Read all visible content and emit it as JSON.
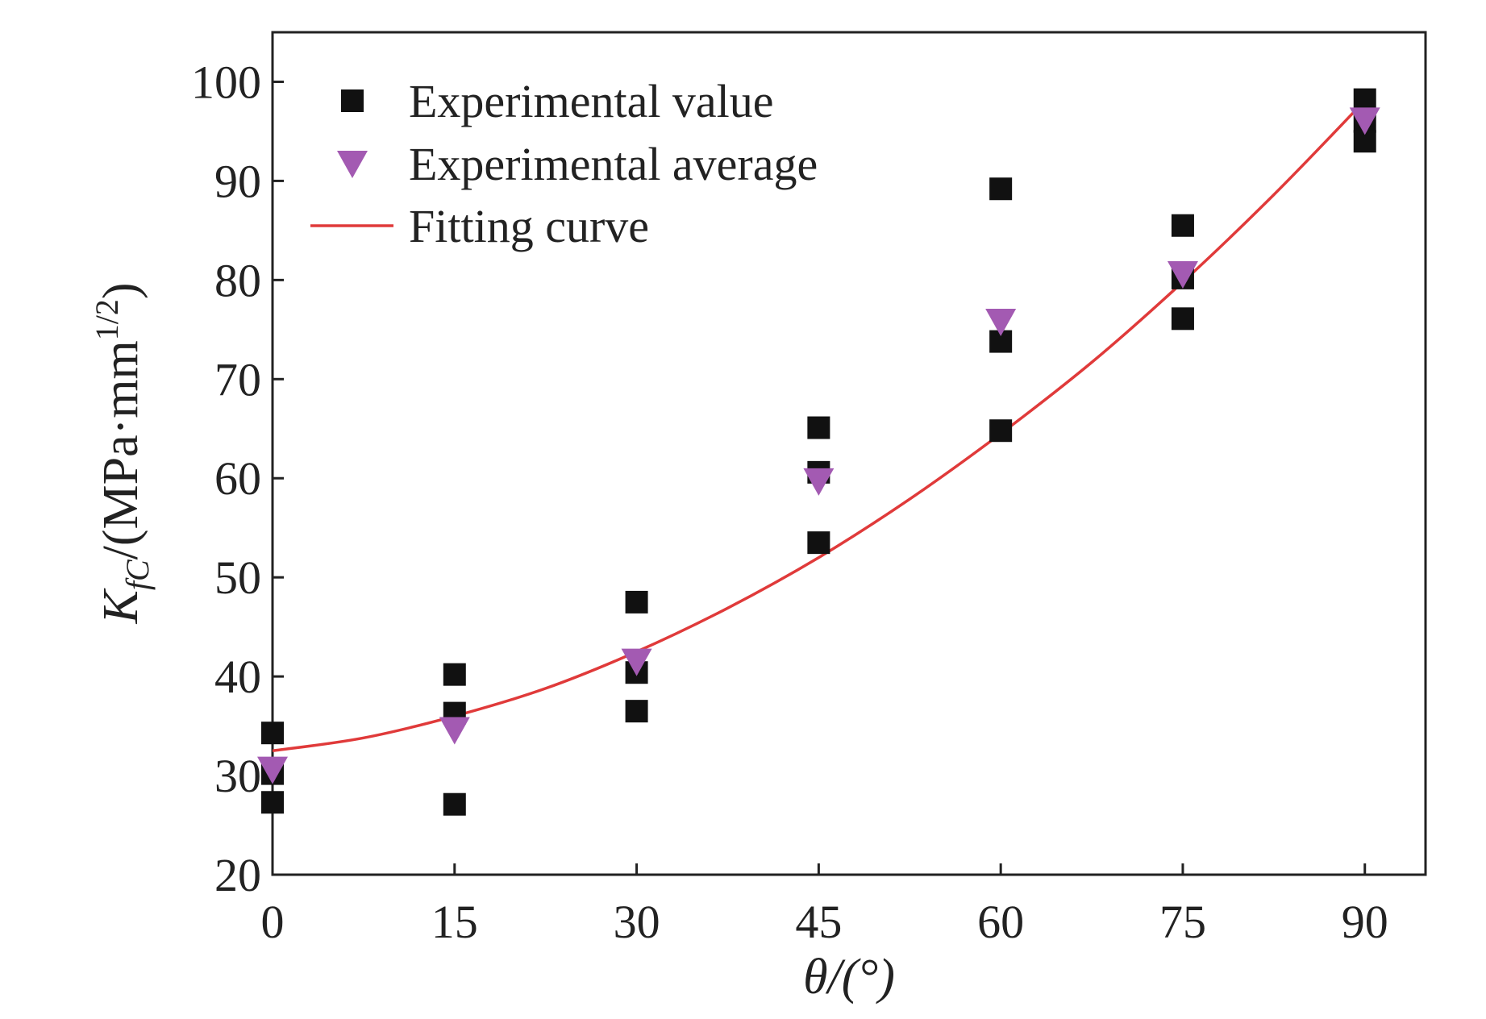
{
  "colors": {
    "experimental_value": "#111111",
    "experimental_average": "#a35ab2",
    "fitting_curve": "#e03a3a",
    "axis": "#222222"
  },
  "legend": {
    "position": "top-left",
    "items": [
      {
        "label": "Experimental value",
        "marker": "square"
      },
      {
        "label": "Experimental average",
        "marker": "down-triangle"
      },
      {
        "label": "Fitting curve",
        "marker": "line"
      }
    ]
  },
  "chart_data": {
    "type": "scatter",
    "xlabel": "θ/(°)",
    "ylabel": {
      "symbol": "K",
      "subscript": "fC",
      "rest": "/(MPa·mm",
      "superscript": "1/2",
      "close": ")"
    },
    "xlim": [
      0,
      95
    ],
    "ylim": [
      20,
      105
    ],
    "xticks": [
      0,
      15,
      30,
      45,
      60,
      75,
      90
    ],
    "yticks": [
      20,
      30,
      40,
      50,
      60,
      70,
      80,
      90,
      100
    ],
    "grid": false,
    "series": [
      {
        "name": "Experimental value",
        "marker": "square",
        "points": [
          [
            0,
            34.3
          ],
          [
            0,
            30.2
          ],
          [
            0,
            27.3
          ],
          [
            15,
            40.2
          ],
          [
            15,
            36.3
          ],
          [
            15,
            27.1
          ],
          [
            30,
            47.5
          ],
          [
            30,
            40.4
          ],
          [
            30,
            36.5
          ],
          [
            45,
            65.1
          ],
          [
            45,
            60.6
          ],
          [
            45,
            53.5
          ],
          [
            60,
            89.2
          ],
          [
            60,
            73.8
          ],
          [
            60,
            64.8
          ],
          [
            75,
            85.5
          ],
          [
            75,
            80.2
          ],
          [
            75,
            76.1
          ],
          [
            90,
            98.2
          ],
          [
            90,
            96.0
          ],
          [
            90,
            94.0
          ]
        ]
      },
      {
        "name": "Experimental average",
        "marker": "down-triangle",
        "points": [
          [
            0,
            30.6
          ],
          [
            15,
            34.6
          ],
          [
            30,
            41.5
          ],
          [
            45,
            59.7
          ],
          [
            60,
            75.8
          ],
          [
            75,
            80.6
          ],
          [
            90,
            96.1
          ]
        ]
      },
      {
        "name": "Fitting curve",
        "marker": "line",
        "points": [
          [
            0,
            32.5
          ],
          [
            7.5,
            33.8
          ],
          [
            15,
            36.0
          ],
          [
            22.5,
            38.8
          ],
          [
            30,
            42.5
          ],
          [
            37.5,
            46.9
          ],
          [
            45,
            52.0
          ],
          [
            52.5,
            57.9
          ],
          [
            60,
            64.5
          ],
          [
            67.5,
            71.7
          ],
          [
            75,
            79.8
          ],
          [
            82.5,
            88.6
          ],
          [
            90,
            98.1
          ]
        ]
      }
    ]
  }
}
